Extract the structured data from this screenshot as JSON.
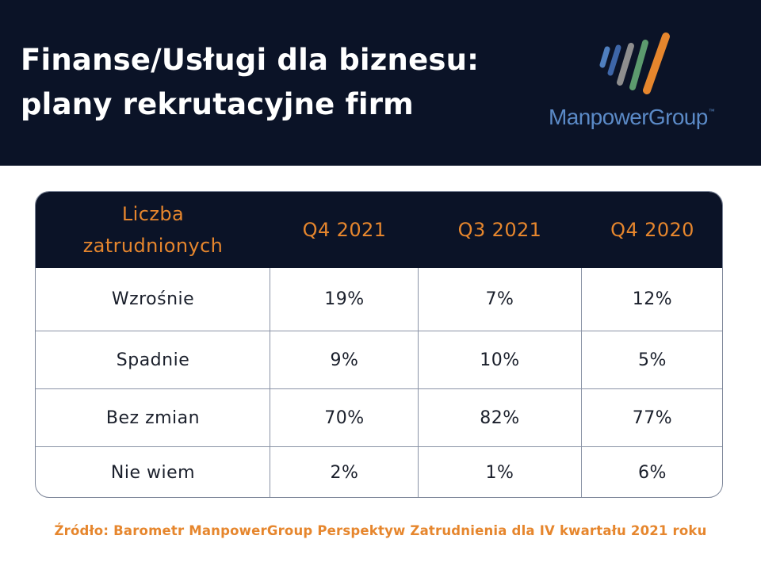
{
  "header": {
    "title_line1": "Finanse/Usługi dla biznesu:",
    "title_line2": "plany rekrutacyjne firm",
    "logo_text": "ManpowerGroup",
    "logo_tm": "™"
  },
  "table": {
    "columns": [
      "Liczba\nzatrudnionych",
      "Q4 2021",
      "Q3 2021",
      "Q4 2020"
    ],
    "rows": [
      {
        "label": "Wzrośnie",
        "values": [
          "19%",
          "7%",
          "12%"
        ]
      },
      {
        "label": "Spadnie",
        "values": [
          "9%",
          "10%",
          "5%"
        ]
      },
      {
        "label": "Bez zmian",
        "values": [
          "70%",
          "82%",
          "77%"
        ]
      },
      {
        "label": "Nie wiem",
        "values": [
          "2%",
          "1%",
          "6%"
        ]
      }
    ]
  },
  "footer": {
    "source": "Źródło: Barometr ManpowerGroup Perspektyw Zatrudnienia dla IV kwartału 2021 roku"
  },
  "colors": {
    "navy": "#0b1327",
    "orange": "#e6862d",
    "logo_blue": "#5b8ac7",
    "logo_gray": "#8e8e8e",
    "logo_green": "#5c9b6e"
  }
}
